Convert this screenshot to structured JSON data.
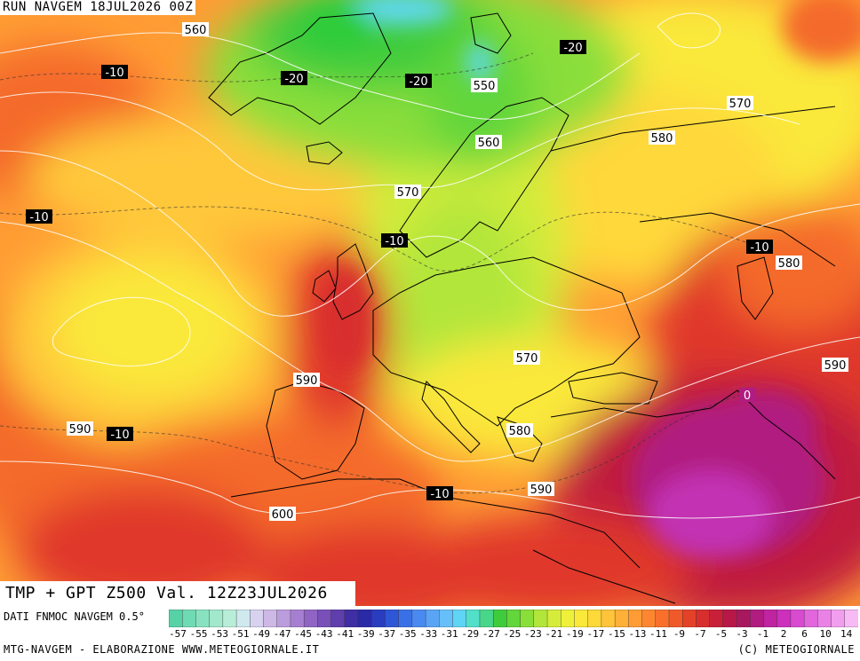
{
  "header": {
    "run": "RUN NAVGEM 18JUL2026 00Z"
  },
  "title": {
    "validity": "TMP + GPT Z500 Val. 12Z23JUL2026"
  },
  "legend": {
    "source": "DATI FNMOC NAVGEM 0.5°",
    "ticks": [
      "-57",
      "-55",
      "-53",
      "-51",
      "-49",
      "-47",
      "-45",
      "-43",
      "-41",
      "-39",
      "-37",
      "-35",
      "-33",
      "-31",
      "-29",
      "-27",
      "-25",
      "-23",
      "-21",
      "-19",
      "-17",
      "-15",
      "-13",
      "-11",
      "-9",
      "-7",
      "-5",
      "-3",
      "-1",
      "2",
      "6",
      "10",
      "14"
    ],
    "colors": [
      "#56d2a6",
      "#6fdbb4",
      "#88e2c0",
      "#a1e8cc",
      "#b8eed8",
      "#cfe9ef",
      "#d6d2ef",
      "#cdb8e6",
      "#bb9cdc",
      "#a77fd0",
      "#9064c4",
      "#7850b8",
      "#5e3fac",
      "#3f2ea4",
      "#2a2aa8",
      "#2a3cc0",
      "#2f56d4",
      "#3a70e6",
      "#4a8af0",
      "#5aa4f6",
      "#66bff8",
      "#5fd4f4",
      "#52e0c8",
      "#47d68a",
      "#3fcc3c",
      "#62d63a",
      "#8ade3a",
      "#b2e63a",
      "#d6ec3a",
      "#eef03a",
      "#fae83a",
      "#ffd83a",
      "#ffc43a",
      "#ffb038",
      "#ff9c34",
      "#ff8630",
      "#f8702c",
      "#f05a2a",
      "#e44228",
      "#d82e2e",
      "#c82038",
      "#b81848",
      "#a8185e",
      "#b01c80",
      "#c024a0",
      "#cc30bc",
      "#d84ad0",
      "#e266dc",
      "#ea82e6",
      "#f29eee",
      "#f8baf4"
    ]
  },
  "map": {
    "colors": {
      "deep_green": "#2fcc3a",
      "green": "#7fdc3c",
      "yellow_green": "#d2ec3a",
      "yellow": "#fae83a",
      "gold": "#ffc83a",
      "orange": "#ff9c34",
      "red_orange": "#f46a2c",
      "red": "#e0382a",
      "dark_red": "#c01e3c",
      "magenta": "#b01c80",
      "violet": "#c230b2",
      "cyan": "#5fd8f0",
      "coast": "#000000",
      "isohypse": "#ffffff"
    },
    "gpt_labels": [
      "560",
      "550",
      "560",
      "570",
      "570",
      "580",
      "580",
      "570",
      "590",
      "590",
      "580",
      "590",
      "600",
      "590"
    ],
    "tmp_labels": [
      "-10",
      "-20",
      "-20",
      "-20",
      "-10",
      "-10",
      "-10",
      "-10",
      "-10",
      "0"
    ]
  },
  "footer": {
    "left": "MTG-NAVGEM - ELABORAZIONE WWW.METEOGIORNALE.IT",
    "right": "(C) METEOGIORNALE"
  }
}
